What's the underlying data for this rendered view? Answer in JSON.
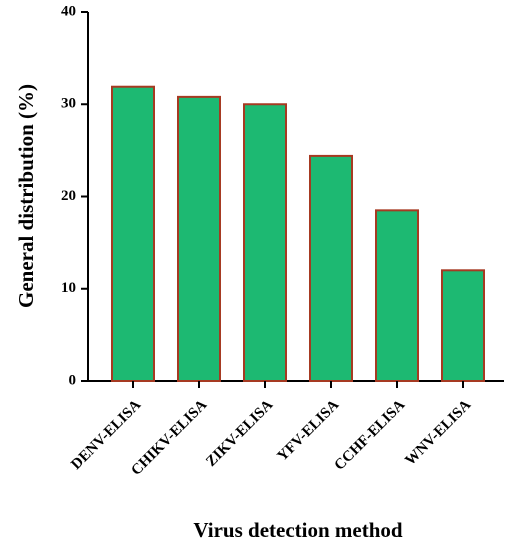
{
  "chart_data": {
    "type": "bar",
    "x_label": "Virus detection method",
    "y_label": "General distribution (%)",
    "categories": [
      "DENV-ELISA",
      "CHIKV-ELISA",
      "ZIKV-ELISA",
      "YFV-ELISA",
      "CCHF-ELISA",
      "WNV-ELISA"
    ],
    "values": [
      31.9,
      30.8,
      30.0,
      24.4,
      18.5,
      12.0
    ],
    "color": "#1db972",
    "edge_color": "#a63a22",
    "ylim": [
      0,
      40
    ],
    "yticks": [
      0,
      10,
      20,
      30,
      40
    ],
    "grid": false
  }
}
